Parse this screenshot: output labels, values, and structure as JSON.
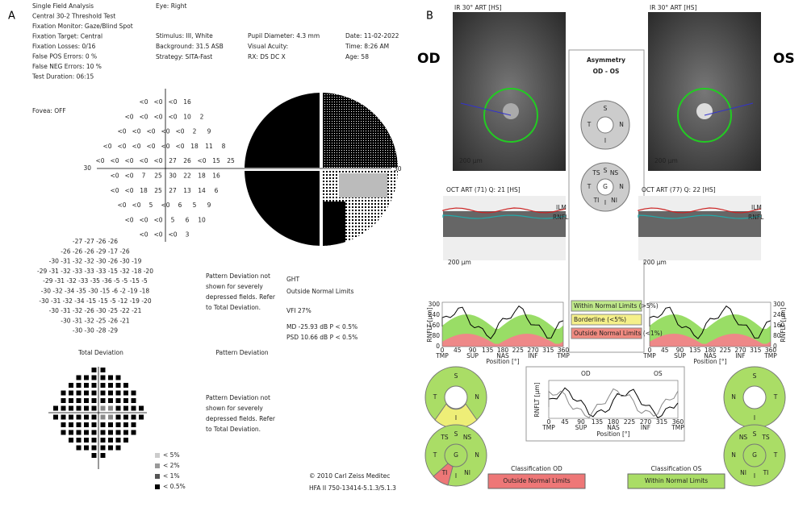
{
  "panel_labels": [
    "A",
    "B"
  ],
  "panel_a": {
    "header_left": [
      "Single Field Analysis",
      "Central 30-2 Threshold Test",
      "Fixation Monitor: Gaze/Blind Spot",
      "Fixation Target: Central",
      "Fixation Losses: 0/16",
      "False POS Errors: 0 %",
      "False NEG Errors: 10 %",
      "Test Duration: 06:15"
    ],
    "eye": "Eye: Right",
    "header_mid": [
      "Stimulus: III, White",
      "Background: 31.5 ASB",
      "Strategy: SITA-Fast"
    ],
    "header_mid2": [
      "Pupil Diameter: 4.3 mm",
      "Visual Acuity:",
      "RX: DS DC X"
    ],
    "header_right": [
      "Date: 11-02-2022",
      "Time: 8:26 AM",
      "Age: 58"
    ],
    "fovea": "Fovea: OFF",
    "axis_label": "30",
    "threshold_rows": [
      [
        "<0",
        "<0",
        "<0",
        "16"
      ],
      [
        "<0",
        "<0",
        "<0",
        "<0",
        "10",
        "2"
      ],
      [
        "<0",
        "<0",
        "<0",
        "<0",
        "<0",
        "2",
        "9"
      ],
      [
        "<0",
        "<0",
        "<0",
        "<0",
        "<0",
        "<0",
        "18",
        "11",
        "8"
      ],
      [
        "<0",
        "<0",
        "<0",
        "<0",
        "<0",
        "27",
        "26",
        "<0",
        "15",
        "25"
      ],
      [
        "<0",
        "<0",
        "7",
        "25",
        "30",
        "22",
        "18",
        "16"
      ],
      [
        "<0",
        "<0",
        "18",
        "25",
        "27",
        "13",
        "14",
        "6"
      ],
      [
        "<0",
        "<0",
        "5",
        "<0",
        "6",
        "5",
        "9"
      ],
      [
        "<0",
        "<0",
        "<0",
        "5",
        "6",
        "10"
      ],
      [
        "<0",
        "<0",
        "<0",
        "3"
      ]
    ],
    "total_deviation_rows": [
      "-27 -27 -26 -26",
      "-26 -26 -26 -29 -17 -26",
      "-30 -31 -32 -32 -30 -26 -30 -19",
      "-29 -31 -32 -33 -33 -33 -15 -32 -18 -20",
      "-29 -31 -32 -33 -35 -36 -5 -5 -15 -5",
      "-30 -32 -34 -35 -30 -15 -6 -2 -19 -18",
      "-30 -31 -32 -34 -15 -15 -5 -12 -19 -20",
      "-30 -31 -32 -26 -30 -25 -22 -21",
      "-30 -31 -32 -25 -26 -21",
      "-30 -30 -28 -29"
    ],
    "total_deviation_title": "Total Deviation",
    "pattern_deviation_title": "Pattern Deviation",
    "pattern_note": [
      "Pattern Deviation not",
      "shown for severely",
      "depressed fields. Refer",
      "to Total Deviation."
    ],
    "ght": [
      "GHT",
      "Outside Normal Limits"
    ],
    "vfi": "VFI  27%",
    "indices": [
      "MD    -25.93 dB  P < 0.5%",
      "PSD   10.66 dB  P < 0.5%"
    ],
    "legend": [
      "< 5%",
      "< 2%",
      "< 1%",
      "< 0.5%"
    ],
    "footer": [
      "© 2010 Carl Zeiss Meditec",
      "HFA II 750-13414-5.1.3/5.1.3"
    ]
  },
  "panel_b": {
    "eyes": [
      "OD",
      "OS"
    ],
    "ir_label": "IR 30° ART [HS]",
    "scale": "200 µm",
    "oct_labels": [
      "OCT ART (71) Q: 21 [HS]",
      "OCT ART (77) Q: 22 [HS]"
    ],
    "layers": [
      "ILM",
      "RNFL"
    ],
    "asymmetry": [
      "Asymmetry",
      "OD - OS"
    ],
    "status_legend": [
      "Within Normal Limits (>5%)",
      "Borderline (<5%)",
      "Outside Normal Limits (<1%)"
    ],
    "graph_yticks": [
      "0",
      "80",
      "160",
      "240",
      "300"
    ],
    "graph_xticks": [
      "0",
      "45",
      "90",
      "135",
      "180",
      "225",
      "270",
      "315",
      "360"
    ],
    "graph_regions": [
      "TMP",
      "SUP",
      "NAS",
      "INF",
      "TMP"
    ],
    "graph_xlabel": "Position [°]",
    "graph_ylabel": "RNFLT [µm]",
    "sector_labels": [
      "S",
      "N",
      "I",
      "T",
      "G",
      "TS",
      "NS",
      "NI",
      "TI"
    ],
    "classification": [
      {
        "title": "Classification OD",
        "result": "Outside Normal Limits"
      },
      {
        "title": "Classification OS",
        "result": "Within Normal Limits"
      }
    ]
  }
}
